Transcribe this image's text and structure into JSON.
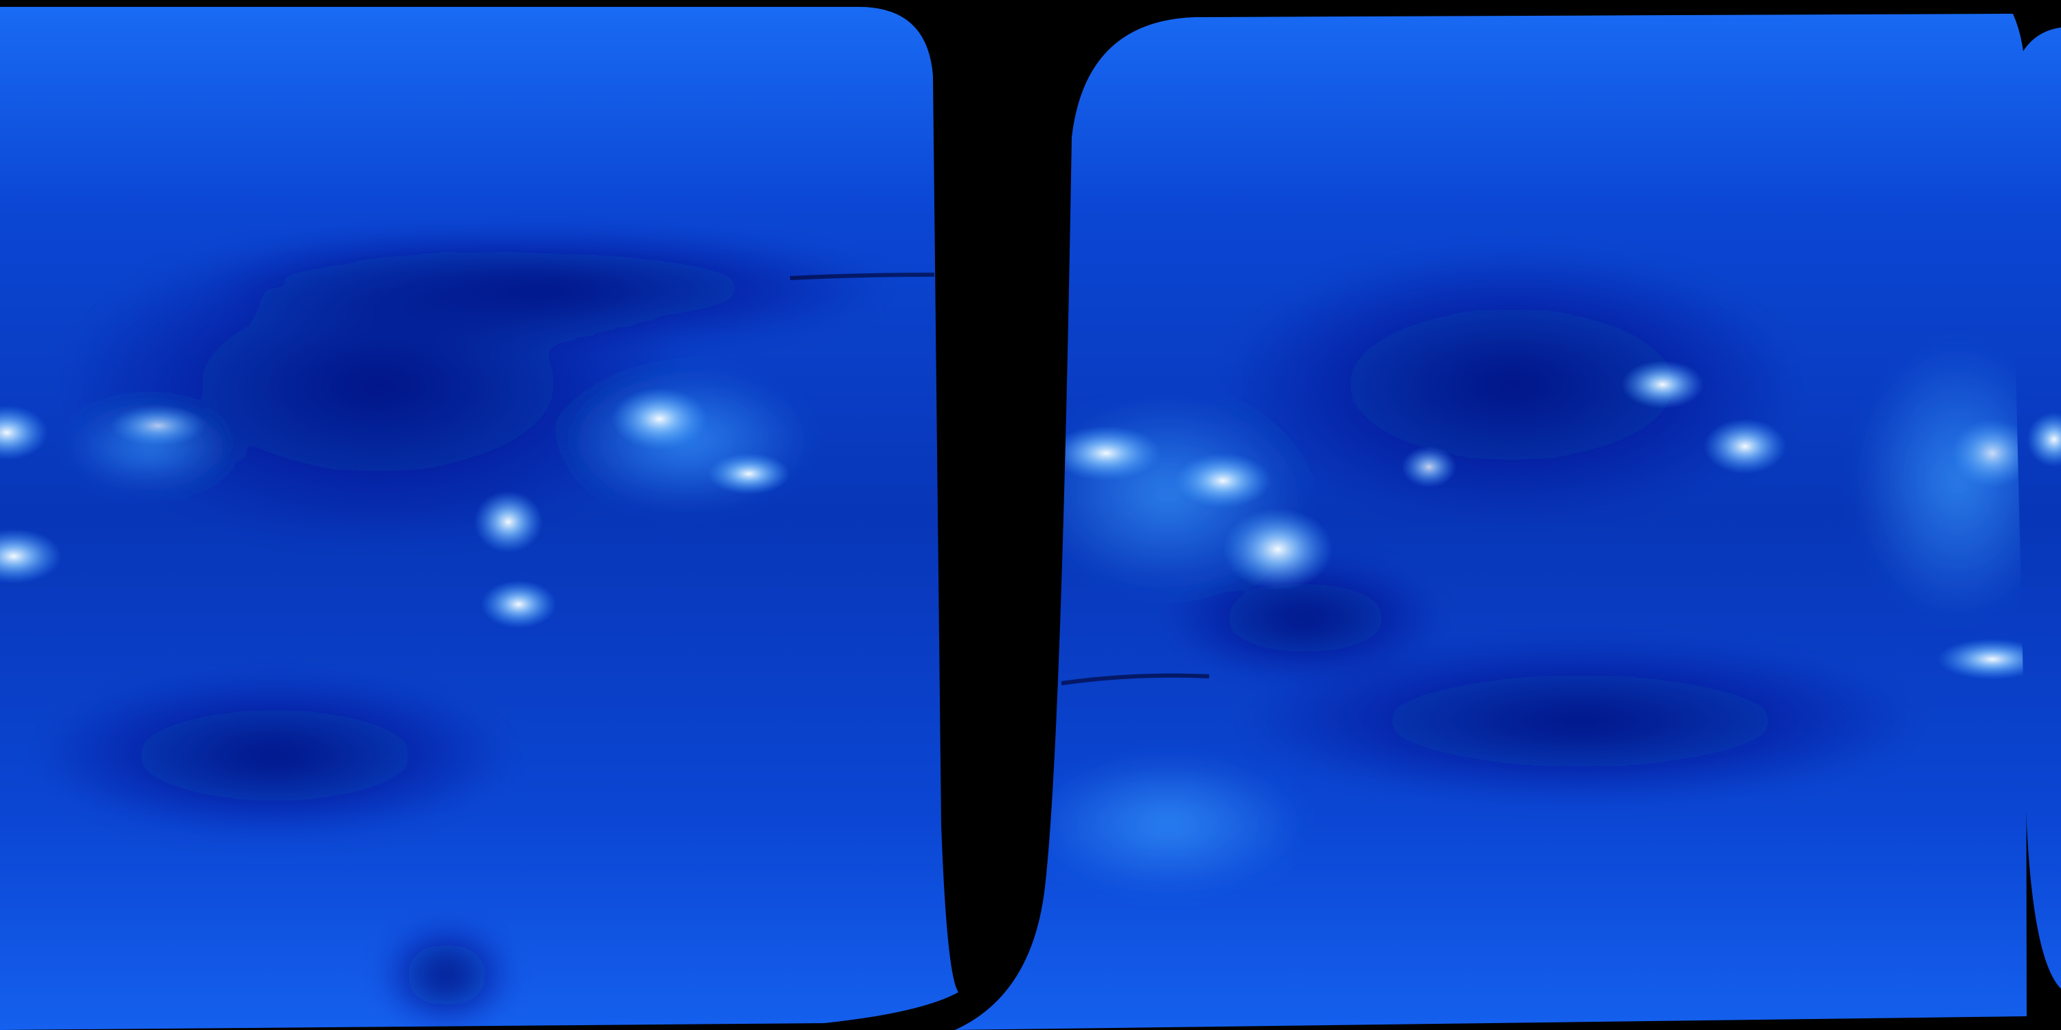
{
  "image": {
    "kind": "solar extreme-ultraviolet synoptic map panels",
    "colors": {
      "background": "#000000",
      "base_blue": "#0a4fe0",
      "dark_blue": "#02148a",
      "light_blue": "#3a9cff",
      "highlight": "#eaf6ff"
    },
    "icons": []
  }
}
